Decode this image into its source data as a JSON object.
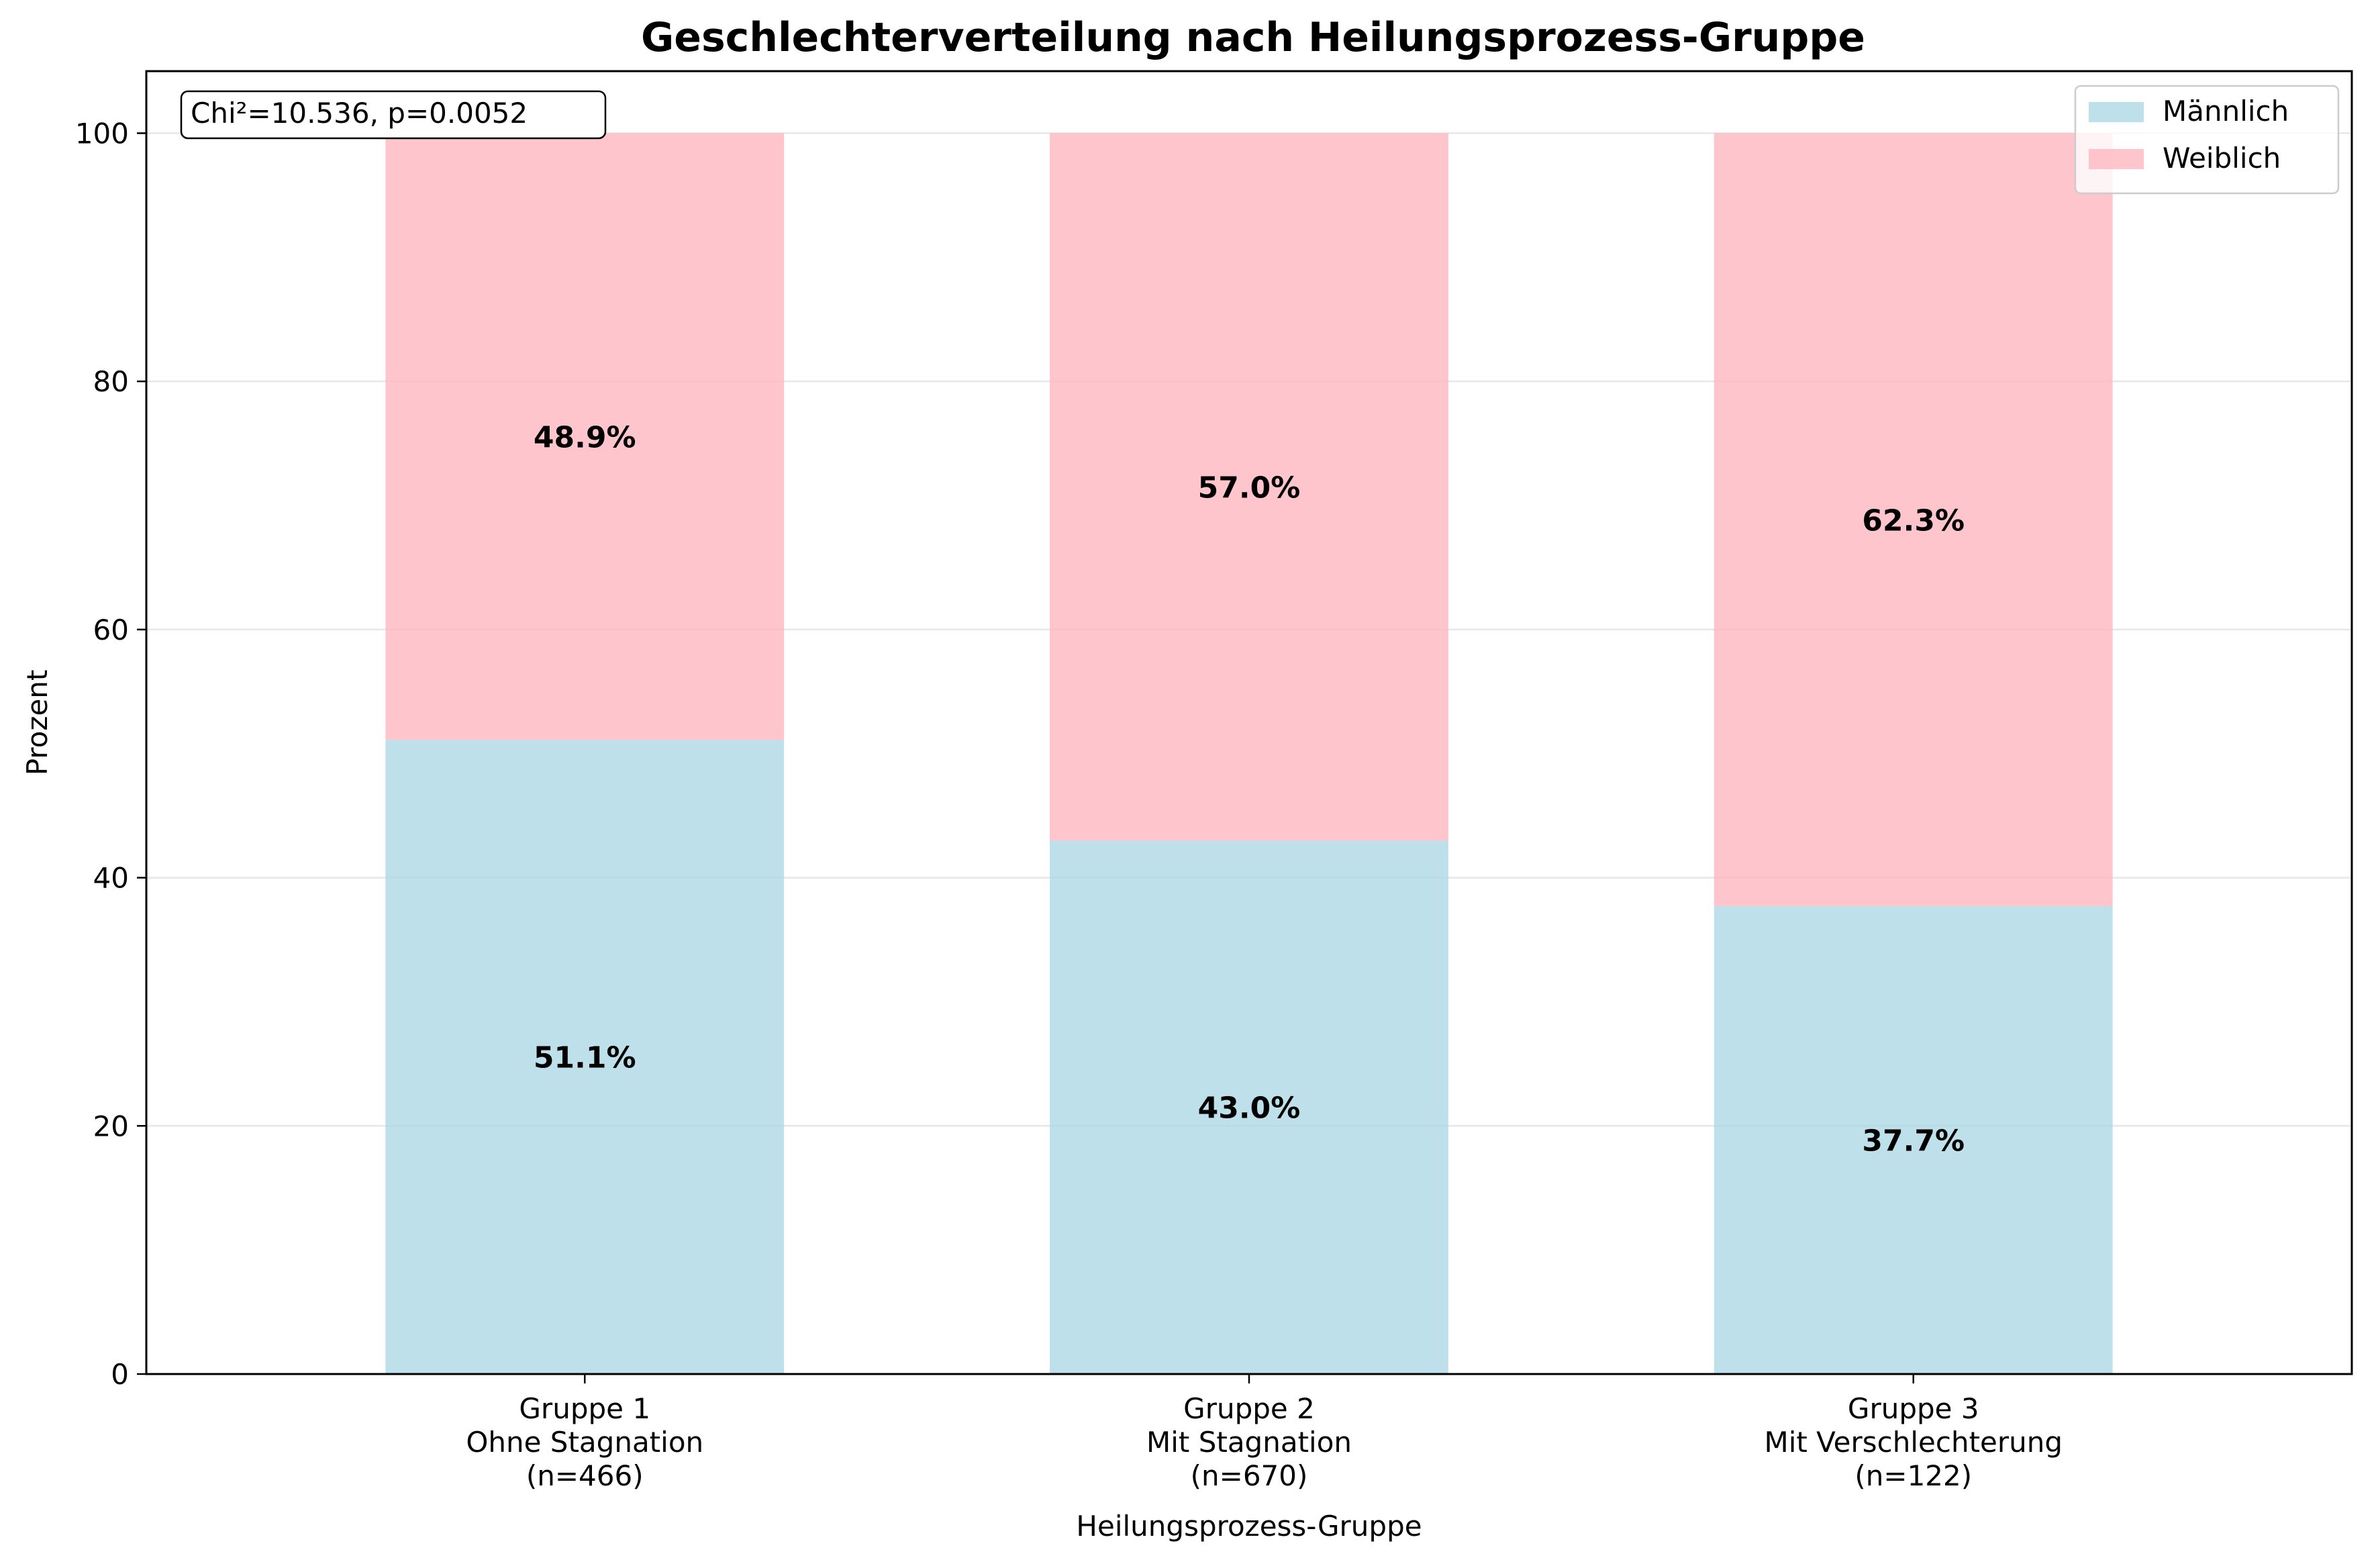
{
  "chart_data": {
    "type": "bar",
    "stacked": true,
    "title": "Geschlechterverteilung nach Heilungsprozess-Gruppe",
    "xlabel": "Heilungsprozess-Gruppe",
    "ylabel": "Prozent",
    "ylim": [
      0,
      105
    ],
    "yticks": [
      "0",
      "20",
      "40",
      "60",
      "80",
      "100"
    ],
    "grid": true,
    "legend_position": "top-right",
    "categories": [
      [
        "Gruppe 1",
        "Ohne Stagnation",
        "(n=466)"
      ],
      [
        "Gruppe 2",
        "Mit Stagnation",
        "(n=670)"
      ],
      [
        "Gruppe 3",
        "Mit Verschlechterung",
        "(n=122)"
      ]
    ],
    "series": [
      {
        "name": "Männlich",
        "color": "#add8e6",
        "values": [
          51.1,
          43.0,
          37.7
        ],
        "labels": [
          "51.1%",
          "43.0%",
          "37.7%"
        ]
      },
      {
        "name": "Weiblich",
        "color": "#ffb6c1",
        "values": [
          48.9,
          57.0,
          62.3
        ],
        "labels": [
          "48.9%",
          "57.0%",
          "62.3%"
        ]
      }
    ],
    "annotation": "Chi²=10.536, p=0.0052"
  }
}
